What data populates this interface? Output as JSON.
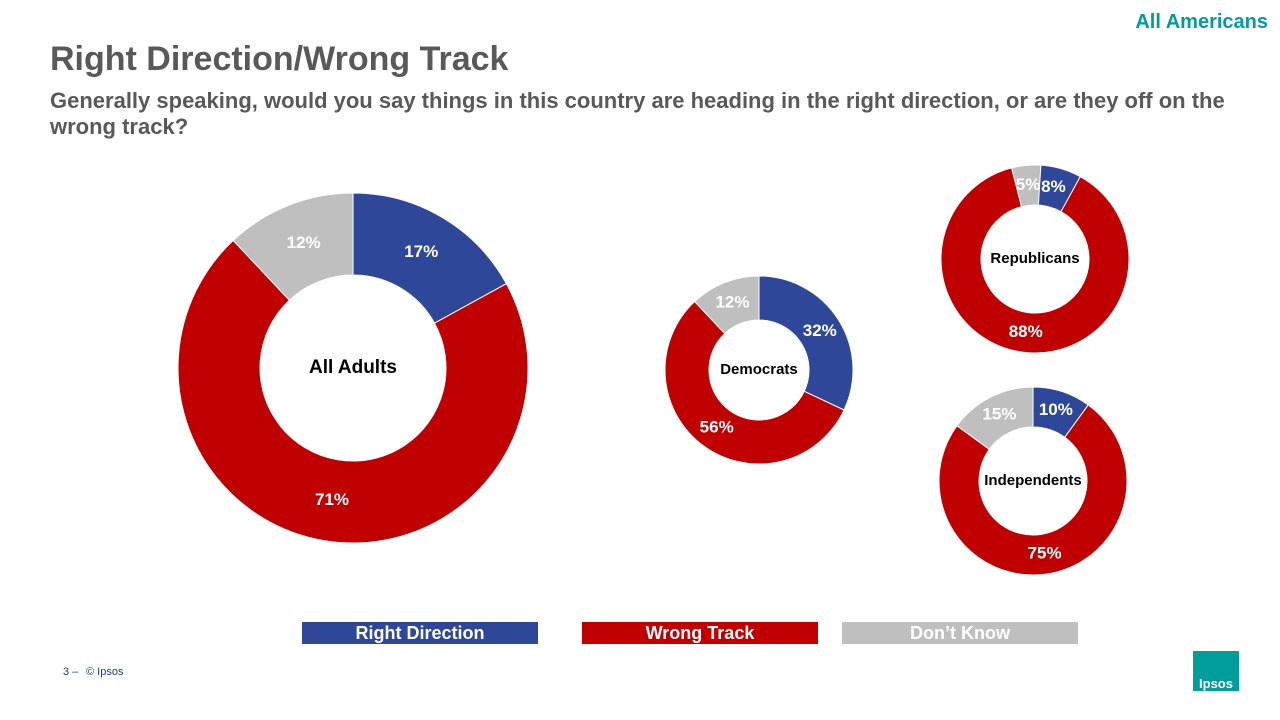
{
  "header": {
    "tag": "All Americans",
    "title": "Right Direction/Wrong Track",
    "subtitle": "Generally speaking, would you say things in this country are heading in the right direction, or are they off on the wrong track?"
  },
  "footer": {
    "page": "3 –",
    "copyright": "© Ipsos",
    "logo": "Ipsos"
  },
  "chart_data": [
    {
      "type": "donut",
      "title": "All Adults",
      "categories": [
        "Right Direction",
        "Wrong Track",
        "Don’t Know"
      ],
      "values": [
        17,
        71,
        12
      ],
      "value_labels": [
        "17%",
        "71%",
        "12%"
      ],
      "colors": [
        "#2e4799",
        "#c00000",
        "#bfbfbf"
      ]
    },
    {
      "type": "donut",
      "title": "Democrats",
      "categories": [
        "Right Direction",
        "Wrong Track",
        "Don’t Know"
      ],
      "values": [
        32,
        56,
        12
      ],
      "value_labels": [
        "32%",
        "56%",
        "12%"
      ],
      "colors": [
        "#2e4799",
        "#c00000",
        "#bfbfbf"
      ]
    },
    {
      "type": "donut",
      "title": "Republicans",
      "categories": [
        "Right Direction",
        "Wrong Track",
        "Don’t Know"
      ],
      "values": [
        8,
        88,
        5
      ],
      "value_labels": [
        "8%",
        "88%",
        "5%"
      ],
      "colors": [
        "#2e4799",
        "#c00000",
        "#bfbfbf"
      ]
    },
    {
      "type": "donut",
      "title": "Independents",
      "categories": [
        "Right Direction",
        "Wrong Track",
        "Don’t Know"
      ],
      "values": [
        10,
        75,
        15
      ],
      "value_labels": [
        "10%",
        "75%",
        "15%"
      ],
      "colors": [
        "#2e4799",
        "#c00000",
        "#bfbfbf"
      ]
    }
  ]
}
